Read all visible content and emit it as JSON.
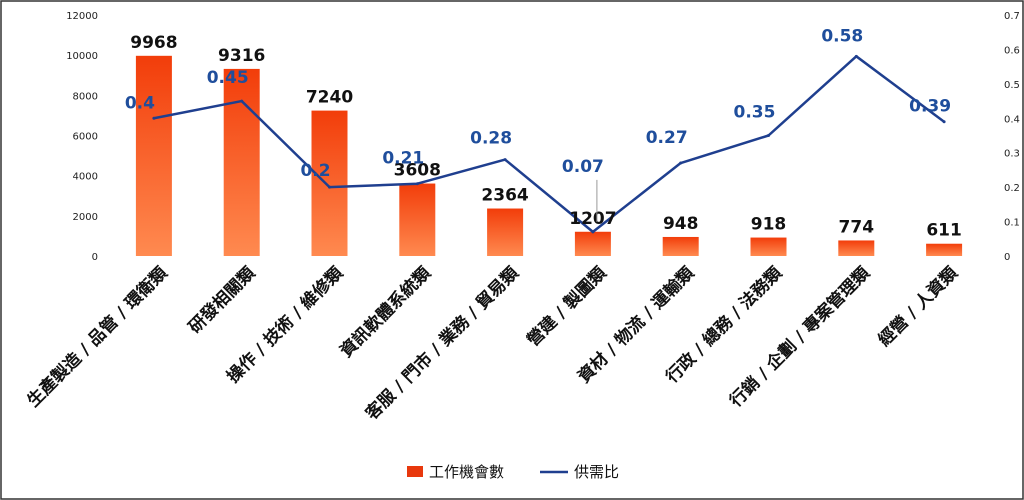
{
  "chart_data": {
    "type": "bar",
    "categories": [
      "生產製造 / 品管 / 環衛類",
      "研發相關類",
      "操作 / 技術 / 維修類",
      "資訊軟體系統類",
      "客服 / 門市 / 業務 / 貿易類",
      "營建 / 製圖類",
      "資材 / 物流 / 運輸類",
      "行政 / 總務 / 法務類",
      "行銷 / 企劃 / 專案管理類",
      "經營 / 人資類"
    ],
    "series": [
      {
        "name": "工作機會數",
        "type": "bar",
        "axis": "left",
        "color": "#e8380d",
        "values": [
          9968,
          9316,
          7240,
          3608,
          2364,
          1207,
          948,
          918,
          774,
          611
        ],
        "labels": [
          "9968",
          "9316",
          "7240",
          "3608",
          "2364",
          "1207",
          "948",
          "918",
          "774",
          "611"
        ]
      },
      {
        "name": "供需比",
        "type": "line",
        "axis": "right",
        "color": "#1f3f8f",
        "values": [
          0.4,
          0.45,
          0.2,
          0.21,
          0.28,
          0.07,
          0.27,
          0.35,
          0.58,
          0.39
        ],
        "labels": [
          "0.4",
          "0.45",
          "0.2",
          "0.21",
          "0.28",
          "0.07",
          "0.27",
          "0.35",
          "0.58",
          "0.39"
        ]
      }
    ],
    "y_left": {
      "min": 0,
      "max": 12000,
      "ticks": [
        "0",
        "2000",
        "4000",
        "6000",
        "8000",
        "10000",
        "12000"
      ]
    },
    "y_right": {
      "min": 0,
      "max": 0.7,
      "ticks": [
        "0",
        "0.1",
        "0.2",
        "0.3",
        "0.4",
        "0.5",
        "0.6",
        "0.7"
      ]
    },
    "grid": false,
    "legend_position": "bottom-center"
  }
}
